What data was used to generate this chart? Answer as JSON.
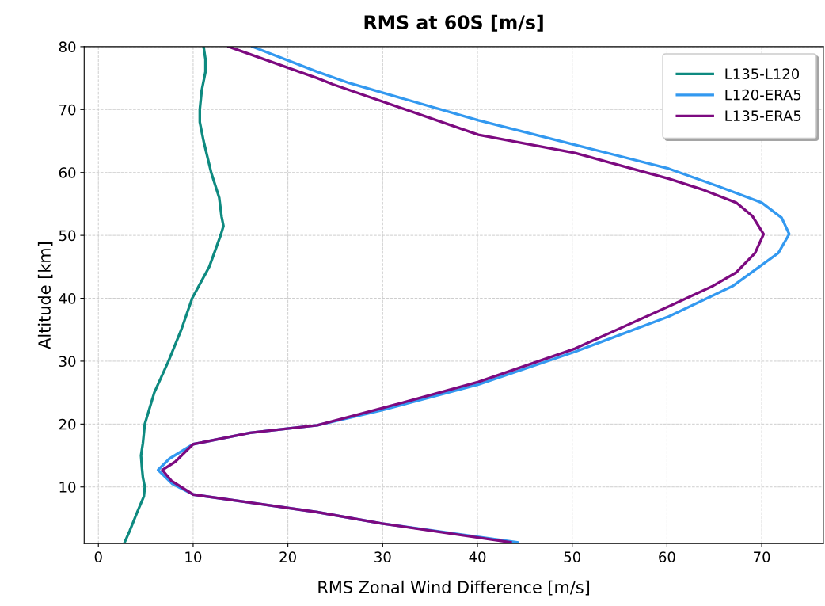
{
  "chart_data": {
    "type": "line",
    "title": "RMS at 60S [m/s]",
    "xlabel": "RMS Zonal Wind Difference [m/s]",
    "ylabel": "Altitude [km]",
    "xlim": [
      -1.5,
      76.5
    ],
    "xticks": [
      0,
      10,
      20,
      30,
      40,
      50,
      60,
      70
    ],
    "ylim": [
      1,
      80
    ],
    "yticks": [
      10,
      20,
      30,
      40,
      50,
      60,
      70,
      80
    ],
    "grid": true,
    "legend": "top right",
    "marker": "none",
    "line_style": "solid",
    "series": [
      {
        "name": "L135-L120",
        "color": "#0e8a80",
        "x": [
          2.8,
          3.3,
          4.1,
          4.8,
          4.9,
          4.7,
          4.6,
          4.5,
          4.7,
          4.9,
          5.9,
          7.4,
          8.75,
          9.9,
          11.7,
          12.9,
          13.2,
          13.0,
          12.75,
          11.9,
          11.1,
          10.7,
          10.7,
          10.9,
          11.3,
          11.3,
          11.1
        ],
        "values": [
          1.3,
          3,
          6,
          8.5,
          10,
          11.5,
          13,
          15,
          17,
          20,
          25,
          30,
          35,
          40,
          45,
          50,
          51.5,
          53,
          56,
          60,
          65,
          68,
          70,
          73,
          76,
          78,
          80
        ]
      },
      {
        "name": "L120-ERA5",
        "color": "#3399f0",
        "x": [
          44.2,
          29.9,
          23.1,
          17.0,
          10.0,
          7.8,
          6.3,
          7.5,
          10.0,
          16.0,
          23.1,
          29.9,
          40.1,
          50.3,
          60.2,
          67.0,
          71.75,
          72.9,
          72.1,
          70.0,
          65.6,
          60.2,
          50.3,
          40.1,
          26.5,
          23.1,
          16.25
        ],
        "values": [
          1.2,
          4.2,
          6.0,
          7.3,
          8.8,
          10.5,
          12.7,
          14.5,
          16.8,
          18.6,
          19.8,
          22.2,
          26.3,
          31.5,
          37.1,
          42.0,
          47.2,
          50.2,
          52.8,
          55.2,
          57.7,
          60.6,
          64.4,
          68.3,
          74.2,
          76,
          80
        ]
      },
      {
        "name": "L135-ERA5",
        "color": "#7d0a80",
        "x": [
          43.5,
          29.9,
          23.1,
          17.0,
          10.0,
          7.7,
          6.75,
          8.1,
          10.0,
          16.0,
          23.1,
          29.9,
          40.1,
          50.3,
          60.2,
          64.9,
          67.3,
          69.3,
          70.2,
          69.0,
          67.3,
          63.9,
          60.2,
          50.3,
          40.1,
          24.75,
          23.1,
          13.75
        ],
        "values": [
          1.2,
          4.2,
          6.0,
          7.3,
          8.8,
          11,
          12.7,
          14,
          16.8,
          18.6,
          19.8,
          22.5,
          26.7,
          32.0,
          38.7,
          42.0,
          44.1,
          47.2,
          50.2,
          53.1,
          55.2,
          57.2,
          59,
          63.1,
          66,
          74,
          75,
          80
        ]
      }
    ]
  }
}
